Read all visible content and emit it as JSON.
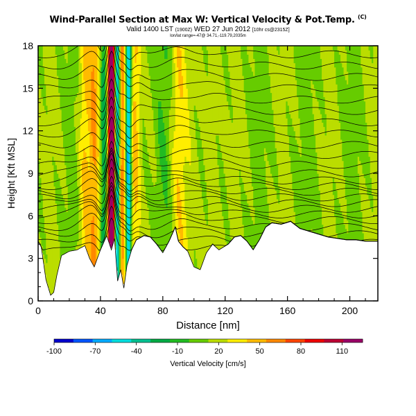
{
  "header": {
    "title": "Wind-Parallel Section at Max W: Vertical Velocity & Pot.Temp.",
    "title_mark": "(C)",
    "valid_main": "Valid 1400 LST",
    "valid_small": "(1900Z)",
    "valid_date": "WED 27 Jun 2012",
    "valid_tail": "[10hr cs@2315Z]",
    "location_info": "lon/lat range=-47@ 34.71,-119.79,2035m"
  },
  "chart_data": {
    "type": "heatmap",
    "title": "Wind-Parallel Section at Max W: Vertical Velocity & Pot.Temp.",
    "xlabel": "Distance [nm]",
    "ylabel": "Height [Kft MSL]",
    "xlim": [
      0,
      218
    ],
    "ylim": [
      0,
      18
    ],
    "x_ticks": [
      0,
      40,
      80,
      120,
      160,
      200
    ],
    "y_ticks": [
      0,
      3,
      6,
      9,
      12,
      15,
      18
    ],
    "colorbar": {
      "label": "Vertical Velocity [cm/s]",
      "range": [
        -100,
        125
      ],
      "tick_values": [
        -100,
        -70,
        -40,
        -10,
        20,
        50,
        80,
        110
      ],
      "tick_labels": [
        "-100",
        "-70",
        "-40",
        "-10",
        "20",
        "50",
        "80",
        "110"
      ],
      "colors": [
        "#0000cc",
        "#0055ff",
        "#00aaff",
        "#00dddd",
        "#00c090",
        "#00aa44",
        "#22bb22",
        "#66cc00",
        "#bbdd00",
        "#ffee00",
        "#ffbb00",
        "#ff8800",
        "#ff4400",
        "#ee0000",
        "#bb0033",
        "#990066"
      ]
    },
    "terrain": [
      [
        0,
        4.2
      ],
      [
        2,
        3.8
      ],
      [
        5,
        1.5
      ],
      [
        8,
        0.4
      ],
      [
        10,
        0.6
      ],
      [
        12,
        1.8
      ],
      [
        15,
        3.2
      ],
      [
        20,
        3.5
      ],
      [
        25,
        3.6
      ],
      [
        30,
        3.9
      ],
      [
        33,
        3.0
      ],
      [
        36,
        2.4
      ],
      [
        40,
        3.6
      ],
      [
        44,
        4.6
      ],
      [
        47,
        3.6
      ],
      [
        49,
        4.4
      ],
      [
        51,
        1.4
      ],
      [
        53,
        2.2
      ],
      [
        55,
        0.9
      ],
      [
        57,
        2.5
      ],
      [
        60,
        3.6
      ],
      [
        63,
        4.3
      ],
      [
        68,
        4.6
      ],
      [
        72,
        4.5
      ],
      [
        76,
        4.0
      ],
      [
        80,
        3.4
      ],
      [
        84,
        4.2
      ],
      [
        88,
        5.2
      ],
      [
        90,
        4.2
      ],
      [
        93,
        3.8
      ],
      [
        96,
        3.5
      ],
      [
        100,
        2.4
      ],
      [
        104,
        2.2
      ],
      [
        108,
        3.4
      ],
      [
        112,
        4.0
      ],
      [
        116,
        3.6
      ],
      [
        122,
        4.0
      ],
      [
        126,
        4.5
      ],
      [
        130,
        4.6
      ],
      [
        134,
        4.2
      ],
      [
        138,
        3.6
      ],
      [
        142,
        4.3
      ],
      [
        146,
        5.2
      ],
      [
        150,
        5.5
      ],
      [
        156,
        5.4
      ],
      [
        162,
        5.6
      ],
      [
        168,
        5.1
      ],
      [
        174,
        4.9
      ],
      [
        180,
        4.7
      ],
      [
        186,
        4.5
      ],
      [
        192,
        4.4
      ],
      [
        198,
        4.3
      ],
      [
        204,
        4.3
      ],
      [
        210,
        4.2
      ],
      [
        218,
        4.2
      ]
    ],
    "theta_contour_bases": [
      3.5,
      4.1,
      4.7,
      5.2,
      5.7,
      6.1,
      6.5,
      6.9,
      7.3,
      7.7,
      8.1,
      8.5,
      9.0,
      9.6,
      10.3,
      11.0,
      11.8,
      12.6,
      13.4,
      14.2,
      15.0,
      15.8,
      16.6,
      17.4
    ],
    "updrafts": [
      {
        "center": 30,
        "width": 4,
        "amplitude": 30
      },
      {
        "center": 36,
        "width": 3,
        "amplitude": 35
      },
      {
        "center": 46,
        "width": 1.5,
        "amplitude": 90
      },
      {
        "center": 48,
        "width": 1.5,
        "amplitude": 110
      },
      {
        "center": 54,
        "width": 2.5,
        "amplitude": 60
      },
      {
        "center": 62,
        "width": 4,
        "amplitude": 35
      },
      {
        "center": 90,
        "width": 5,
        "amplitude": 25
      },
      {
        "center": 112,
        "width": 6,
        "amplitude": 15
      }
    ],
    "downdrafts": [
      {
        "center": 42,
        "width": 2,
        "amplitude": -40
      },
      {
        "center": 51,
        "width": 1.8,
        "amplitude": -70
      },
      {
        "center": 58,
        "width": 2,
        "amplitude": -85
      },
      {
        "center": 66,
        "width": 4,
        "amplitude": -10
      },
      {
        "center": 80,
        "width": 5,
        "amplitude": -8
      }
    ]
  }
}
